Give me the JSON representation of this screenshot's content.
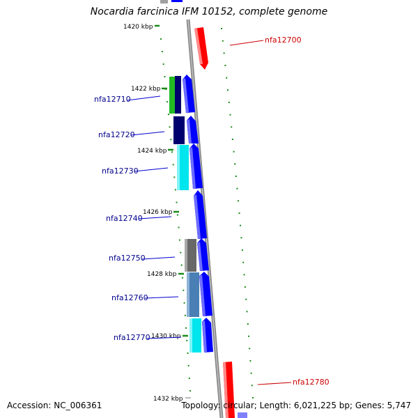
{
  "title": "Nocardia farcinica IFM 10152, complete genome",
  "footer": {
    "accession": "Accession: NC_006361",
    "topology": "Topology: circular; Length: 6,021,225 bp; Genes: 5,747"
  },
  "colors": {
    "forward_strand": "#0000ff",
    "reverse_strand": "#ff0000",
    "label_forward": "#00008b",
    "label_reverse": "#cc0000",
    "kbp_marker": "#1a8a1a",
    "backbone": "#8a8a8a"
  },
  "kbp_labels": [
    "1420 kbp",
    "1422 kbp",
    "1424 kbp",
    "1426 kbp",
    "1428 kbp",
    "1430 kbp",
    "1432 kbp"
  ],
  "genes": [
    {
      "name": "nfa12700",
      "strand": "reverse"
    },
    {
      "name": "nfa12710",
      "strand": "forward"
    },
    {
      "name": "nfa12720",
      "strand": "forward"
    },
    {
      "name": "nfa12730",
      "strand": "forward"
    },
    {
      "name": "nfa12740",
      "strand": "forward"
    },
    {
      "name": "nfa12750",
      "strand": "forward"
    },
    {
      "name": "nfa12760",
      "strand": "forward"
    },
    {
      "name": "nfa12770",
      "strand": "forward"
    },
    {
      "name": "nfa12780",
      "strand": "reverse"
    }
  ]
}
